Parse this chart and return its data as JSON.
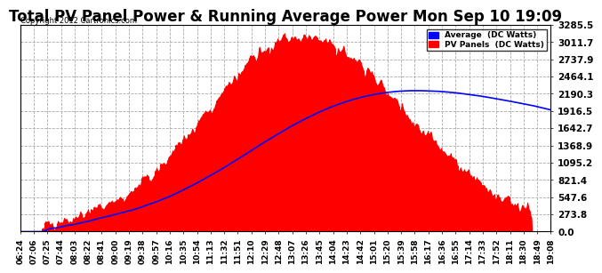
{
  "title": "Total PV Panel Power & Running Average Power Mon Sep 10 19:09",
  "copyright": "Copyright 2012 Cartronics.com",
  "legend_avg": "Average  (DC Watts)",
  "legend_pv": "PV Panels  (DC Watts)",
  "ymax": 3285.5,
  "ymin": 0.0,
  "yticks": [
    0.0,
    273.8,
    547.6,
    821.4,
    1095.2,
    1368.9,
    1642.7,
    1916.5,
    2190.3,
    2464.1,
    2737.9,
    3011.7,
    3285.5
  ],
  "background_color": "#ffffff",
  "pv_color": "#ff0000",
  "avg_color": "#0000ff",
  "grid_color": "#aaaaaa",
  "title_fontsize": 12,
  "xlabel_fontsize": 6.5,
  "ylabel_fontsize": 7.5,
  "xtick_labels": [
    "06:24",
    "07:06",
    "07:25",
    "07:44",
    "08:03",
    "08:22",
    "08:41",
    "09:00",
    "09:19",
    "09:38",
    "09:57",
    "10:16",
    "10:35",
    "10:54",
    "11:13",
    "11:32",
    "11:51",
    "12:10",
    "12:29",
    "12:48",
    "13:07",
    "13:26",
    "13:45",
    "14:04",
    "14:23",
    "14:42",
    "15:01",
    "15:20",
    "15:39",
    "15:58",
    "16:17",
    "16:36",
    "16:55",
    "17:14",
    "17:33",
    "17:52",
    "18:11",
    "18:30",
    "18:49",
    "19:08"
  ]
}
